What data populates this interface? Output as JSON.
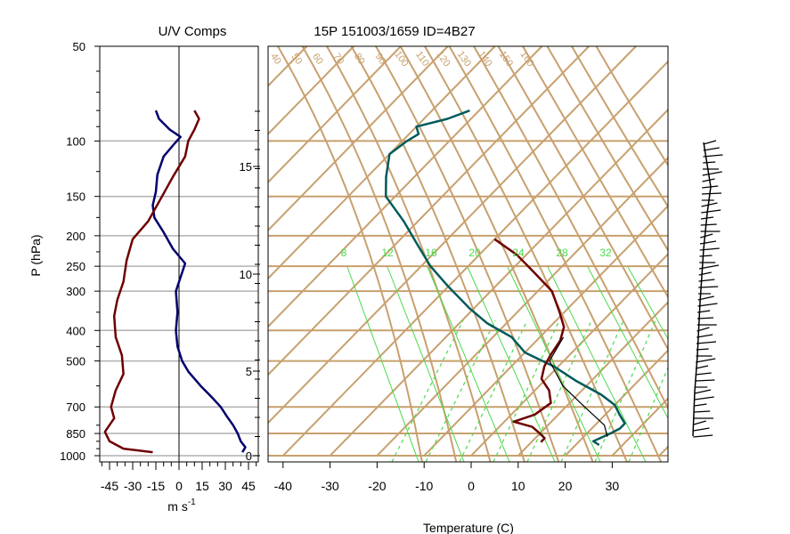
{
  "titles": {
    "left": "U/V Comps",
    "right": "15P 151003/1659 ID=4B27"
  },
  "labels": {
    "pressure_axis": "P (hPa)",
    "wind_axis": "m s",
    "wind_axis_sup": "-1",
    "temperature_axis": "Temperature (C)"
  },
  "colors": {
    "isotherm": "#c8a06e",
    "mixing_ratio": "#4cd94c",
    "u_component": "#00006e",
    "v_component": "#6e0000",
    "dewpoint": "#6e0000",
    "temperature": "#005a5a",
    "parcel": "#000000"
  },
  "chart_data": [
    {
      "type": "line",
      "name": "wind-components",
      "title": "U/V Comps",
      "xlabel": "m s-1",
      "ylabel": "P (hPa)",
      "y_scale": "log",
      "xlim": [
        -50,
        50
      ],
      "ylim": [
        1000,
        50
      ],
      "x_ticks": [
        "-45",
        "-30",
        "-15",
        "0",
        "15",
        "30",
        "45"
      ],
      "y_ticks": [
        "50",
        "100",
        "150",
        "200",
        "250",
        "300",
        "400",
        "500",
        "700",
        "850",
        "1000"
      ],
      "grid": true,
      "series": [
        {
          "color": "#00006e",
          "points": [
            [
              -15,
              80
            ],
            [
              -13,
              85
            ],
            [
              -6,
              92
            ],
            [
              1,
              97
            ],
            [
              -3,
              102
            ],
            [
              -10,
              112
            ],
            [
              -14,
              128
            ],
            [
              -15,
              145
            ],
            [
              -17,
              160
            ],
            [
              -16,
              175
            ],
            [
              -10,
              195
            ],
            [
              -4,
              220
            ],
            [
              4,
              245
            ],
            [
              -2,
              300
            ],
            [
              -1,
              350
            ],
            [
              -2,
              400
            ],
            [
              -1,
              450
            ],
            [
              2,
              500
            ],
            [
              6,
              540
            ],
            [
              14,
              600
            ],
            [
              21,
              650
            ],
            [
              27,
              700
            ],
            [
              31,
              750
            ],
            [
              35,
              800
            ],
            [
              38,
              850
            ],
            [
              40,
              900
            ],
            [
              43,
              940
            ],
            [
              41,
              975
            ]
          ]
        },
        {
          "color": "#6e0000",
          "points": [
            [
              10,
              80
            ],
            [
              13,
              85
            ],
            [
              10,
              92
            ],
            [
              6,
              100
            ],
            [
              4,
              112
            ],
            [
              -4,
              130
            ],
            [
              -11,
              150
            ],
            [
              -20,
              180
            ],
            [
              -30,
              205
            ],
            [
              -34,
              240
            ],
            [
              -36,
              280
            ],
            [
              -40,
              320
            ],
            [
              -42,
              360
            ],
            [
              -41,
              420
            ],
            [
              -37,
              480
            ],
            [
              -36,
              550
            ],
            [
              -41,
              620
            ],
            [
              -44,
              700
            ],
            [
              -42,
              760
            ],
            [
              -48,
              840
            ],
            [
              -45,
              900
            ],
            [
              -36,
              950
            ],
            [
              -17,
              975
            ]
          ]
        }
      ]
    },
    {
      "type": "line",
      "name": "skew-t-diagram",
      "title": "15P 151003/1659 ID=4B27",
      "xlabel": "Temperature (C)",
      "x_ticks": [
        "-40",
        "-30",
        "-20",
        "-10",
        "0",
        "10",
        "20",
        "30"
      ],
      "height_ticks": [
        "0",
        "5",
        "10",
        "15"
      ],
      "dry_adiabat_labels": [
        "40",
        "50",
        "60",
        "70",
        "80",
        "90",
        "100",
        "110",
        "120",
        "130",
        "140",
        "150",
        "160"
      ],
      "mixing_ratio_labels": [
        "8",
        "12",
        "16",
        "20",
        "24",
        "28",
        "32"
      ],
      "series": [
        {
          "color": "#005a5a",
          "points": [
            [
              -72,
              80
            ],
            [
              -75,
              85
            ],
            [
              -80,
              90
            ],
            [
              -78,
              95
            ],
            [
              -79,
              100
            ],
            [
              -80,
              110
            ],
            [
              -76,
              130
            ],
            [
              -72,
              150
            ],
            [
              -63,
              180
            ],
            [
              -56,
              210
            ],
            [
              -48,
              250
            ],
            [
              -40,
              290
            ],
            [
              -31,
              340
            ],
            [
              -24,
              380
            ],
            [
              -16,
              420
            ],
            [
              -10,
              470
            ],
            [
              -1,
              520
            ],
            [
              7,
              580
            ],
            [
              15,
              640
            ],
            [
              20,
              690
            ],
            [
              23,
              740
            ],
            [
              26,
              790
            ],
            [
              26,
              820
            ],
            [
              25,
              850
            ],
            [
              23,
              900
            ],
            [
              25,
              925
            ]
          ]
        },
        {
          "color": "#6e0000",
          "points": [
            [
              -40,
              205
            ],
            [
              -32,
              230
            ],
            [
              -25,
              260
            ],
            [
              -17,
              300
            ],
            [
              -11,
              350
            ],
            [
              -7,
              390
            ],
            [
              -5,
              430
            ],
            [
              -4,
              480
            ],
            [
              -3,
              520
            ],
            [
              -1,
              570
            ],
            [
              3,
              620
            ],
            [
              6,
              680
            ],
            [
              5,
              740
            ],
            [
              2,
              780
            ],
            [
              7,
              810
            ],
            [
              10,
              850
            ],
            [
              12,
              880
            ],
            [
              12,
              905
            ]
          ]
        },
        {
          "color": "#000000",
          "points": [
            [
              -5,
              420
            ],
            [
              -3,
              500
            ],
            [
              5,
              600
            ],
            [
              14,
              700
            ],
            [
              22,
              800
            ],
            [
              25,
              870
            ]
          ]
        }
      ]
    }
  ]
}
